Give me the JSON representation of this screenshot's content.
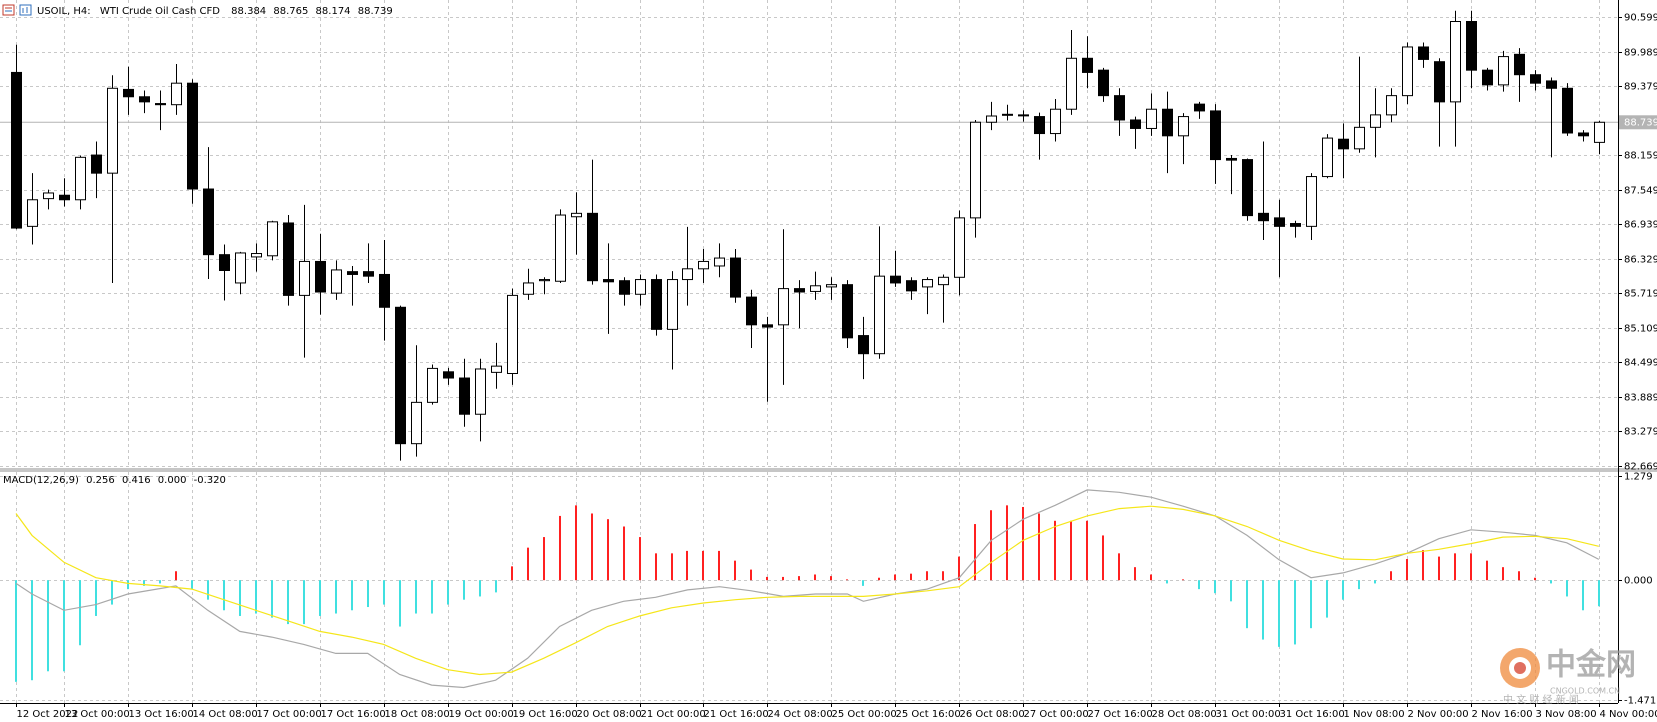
{
  "chart_data": [
    {
      "type": "candlestick",
      "title": "USOIL, H4:",
      "subtitle": "WTI Crude Oil Cash CFD",
      "readings": [
        88.384,
        88.765,
        88.174,
        88.739
      ],
      "last_price": 88.739,
      "up_color": "#ffffff",
      "down_color": "#000000",
      "outline": "#000000",
      "price_line_color": "#b4b4b4",
      "grid": true,
      "ylim": [
        82.63,
        90.9
      ],
      "yticks": [
        90.599,
        89.989,
        89.379,
        88.159,
        87.549,
        86.939,
        86.329,
        85.719,
        85.109,
        84.499,
        83.889,
        83.279,
        82.669
      ],
      "xlim": [
        -1,
        100.2
      ],
      "xticks": [
        {
          "value": 0,
          "label": "12 Oct 2022"
        },
        {
          "value": 3,
          "label": "13 Oct 00:00"
        },
        {
          "value": 7,
          "label": "13 Oct 16:00"
        },
        {
          "value": 11,
          "label": "14 Oct 08:00"
        },
        {
          "value": 15,
          "label": "17 Oct 00:00"
        },
        {
          "value": 19,
          "label": "17 Oct 16:00"
        },
        {
          "value": 23,
          "label": "18 Oct 08:00"
        },
        {
          "value": 27,
          "label": "19 Oct 00:00"
        },
        {
          "value": 31,
          "label": "19 Oct 16:00"
        },
        {
          "value": 35,
          "label": "20 Oct 08:00"
        },
        {
          "value": 39,
          "label": "21 Oct 00:00"
        },
        {
          "value": 43,
          "label": "21 Oct 16:00"
        },
        {
          "value": 47,
          "label": "24 Oct 08:00"
        },
        {
          "value": 51,
          "label": "25 Oct 00:00"
        },
        {
          "value": 55,
          "label": "25 Oct 16:00"
        },
        {
          "value": 59,
          "label": "26 Oct 08:00"
        },
        {
          "value": 63,
          "label": "27 Oct 00:00"
        },
        {
          "value": 67,
          "label": "27 Oct 16:00"
        },
        {
          "value": 71,
          "label": "28 Oct 08:00"
        },
        {
          "value": 75,
          "label": "31 Oct 00:00"
        },
        {
          "value": 79,
          "label": "31 Oct 16:00"
        },
        {
          "value": 83,
          "label": "1 Nov 08:00"
        },
        {
          "value": 87,
          "label": "2 Nov 00:00"
        },
        {
          "value": 91,
          "label": "2 Nov 16:00"
        },
        {
          "value": 95,
          "label": "3 Nov 08:00"
        },
        {
          "value": 99,
          "label": "4 Nov 00:00"
        }
      ],
      "open": [
        89.62,
        86.9,
        87.39,
        87.45,
        87.37,
        88.16,
        87.84,
        89.32,
        89.19,
        89.07,
        89.05,
        89.43,
        87.56,
        86.4,
        85.9,
        86.36,
        86.38,
        86.96,
        85.68,
        86.28,
        85.72,
        86.1,
        86.1,
        86.05,
        85.47,
        83.06,
        83.79,
        84.33,
        84.22,
        83.58,
        84.32,
        84.3,
        85.7,
        85.94,
        85.93,
        87.07,
        87.13,
        85.96,
        85.94,
        85.7,
        85.96,
        85.08,
        85.96,
        86.15,
        86.2,
        86.34,
        85.65,
        85.16,
        85.16,
        85.8,
        85.75,
        85.83,
        85.87,
        84.97,
        84.65,
        86.02,
        85.94,
        85.83,
        85.87,
        86.0,
        87.05,
        88.74,
        88.87,
        88.87,
        88.84,
        88.54,
        88.97,
        89.87,
        89.66,
        89.21,
        88.78,
        88.63,
        88.97,
        88.5,
        89.06,
        88.94,
        88.1,
        88.08,
        87.13,
        87.05,
        86.95,
        86.9,
        87.78,
        88.44,
        88.27,
        88.65,
        88.87,
        89.21,
        90.07,
        89.81,
        89.1,
        90.52,
        89.66,
        89.4,
        89.94,
        89.58,
        89.47,
        89.34,
        88.55,
        88.384
      ],
      "high": [
        90.11,
        87.84,
        87.55,
        87.75,
        88.15,
        88.4,
        89.57,
        89.72,
        89.3,
        89.3,
        89.77,
        89.5,
        88.3,
        86.58,
        86.45,
        86.6,
        87.0,
        87.1,
        87.28,
        86.77,
        86.3,
        86.2,
        86.6,
        86.66,
        85.5,
        84.8,
        84.46,
        84.4,
        84.56,
        84.56,
        84.84,
        85.8,
        86.15,
        86.0,
        87.2,
        87.5,
        88.08,
        86.6,
        86.0,
        86.05,
        86.05,
        86.11,
        86.89,
        86.5,
        86.6,
        86.5,
        85.78,
        85.3,
        86.85,
        85.95,
        86.1,
        86.0,
        85.95,
        85.3,
        86.9,
        86.47,
        86.0,
        86.0,
        86.05,
        87.18,
        88.78,
        89.1,
        89.05,
        88.95,
        88.91,
        89.15,
        90.37,
        90.26,
        89.7,
        89.34,
        88.84,
        89.25,
        89.28,
        88.9,
        89.1,
        89.06,
        88.16,
        88.1,
        88.4,
        87.37,
        87.0,
        87.84,
        88.53,
        88.72,
        89.9,
        89.34,
        89.34,
        90.15,
        90.15,
        89.87,
        90.71,
        90.71,
        89.7,
        90.0,
        90.05,
        89.66,
        89.53,
        89.43,
        88.6,
        88.765
      ],
      "low": [
        86.85,
        86.58,
        87.2,
        87.25,
        87.2,
        87.4,
        85.9,
        88.87,
        88.9,
        88.6,
        88.87,
        87.3,
        85.97,
        85.59,
        85.7,
        86.1,
        86.3,
        85.5,
        84.58,
        85.34,
        85.6,
        85.5,
        85.9,
        84.88,
        82.76,
        82.83,
        83.75,
        84.1,
        83.36,
        83.1,
        84.03,
        84.1,
        85.6,
        85.7,
        85.9,
        86.4,
        85.87,
        85.0,
        85.5,
        85.5,
        84.97,
        84.37,
        85.5,
        85.9,
        86.0,
        85.55,
        84.75,
        83.8,
        84.1,
        85.1,
        85.6,
        85.6,
        84.75,
        84.2,
        84.56,
        85.83,
        85.6,
        85.35,
        85.2,
        85.68,
        86.7,
        88.6,
        88.77,
        88.75,
        88.08,
        88.4,
        88.87,
        89.34,
        89.1,
        88.5,
        88.27,
        88.5,
        87.84,
        88.0,
        88.8,
        87.65,
        87.47,
        87.0,
        86.66,
        86.0,
        86.7,
        86.66,
        87.75,
        87.75,
        88.2,
        88.12,
        88.74,
        89.06,
        89.7,
        88.31,
        88.31,
        89.34,
        89.3,
        89.28,
        89.1,
        89.3,
        88.12,
        88.5,
        88.4,
        88.174
      ],
      "close": [
        86.87,
        87.37,
        87.49,
        87.37,
        88.12,
        87.84,
        89.34,
        89.19,
        89.1,
        89.05,
        89.43,
        87.56,
        86.4,
        86.12,
        86.43,
        86.42,
        86.98,
        85.68,
        86.28,
        85.74,
        86.13,
        86.05,
        86.02,
        85.47,
        83.06,
        83.79,
        84.39,
        84.22,
        83.58,
        84.38,
        84.43,
        85.68,
        85.9,
        85.96,
        87.1,
        87.13,
        85.94,
        85.92,
        85.7,
        85.96,
        85.08,
        85.96,
        86.15,
        86.28,
        86.34,
        85.65,
        85.16,
        85.12,
        85.8,
        85.74,
        85.85,
        85.87,
        84.93,
        84.65,
        86.02,
        85.9,
        85.76,
        85.96,
        86.0,
        87.05,
        88.74,
        88.85,
        88.88,
        88.86,
        88.54,
        88.97,
        89.87,
        89.62,
        89.21,
        88.78,
        88.63,
        88.97,
        88.5,
        88.84,
        88.94,
        88.08,
        88.07,
        87.09,
        87.0,
        86.9,
        86.9,
        87.78,
        88.46,
        88.27,
        88.65,
        88.87,
        89.21,
        90.07,
        89.85,
        89.1,
        90.52,
        89.66,
        89.4,
        89.9,
        89.58,
        89.43,
        89.34,
        88.55,
        88.5,
        88.739
      ]
    },
    {
      "type": "macd",
      "title": "MACD(12,26,9)",
      "readings": [
        0.256,
        0.416,
        {
          "value": 0,
          "label": "0.000"
        },
        {
          "value": -0.32,
          "label": "-0.320"
        }
      ],
      "grid": true,
      "ylim": [
        -1.51,
        1.33
      ],
      "yticks": [
        1.279,
        {
          "value": 0,
          "label": "0.000"
        },
        -1.471
      ],
      "histogram": {
        "up_color": "#ff2020",
        "down_color": "#40e0e0",
        "values": [
          -1.25,
          -1.23,
          -1.12,
          -1.12,
          -0.8,
          -0.44,
          -0.3,
          -0.11,
          -0.07,
          -0.04,
          0.11,
          -0.11,
          -0.24,
          -0.37,
          -0.44,
          -0.41,
          -0.46,
          -0.54,
          -0.54,
          -0.44,
          -0.41,
          -0.37,
          -0.33,
          -0.3,
          -0.57,
          -0.41,
          -0.41,
          -0.3,
          -0.24,
          -0.2,
          -0.15,
          0.17,
          0.4,
          0.53,
          0.79,
          0.92,
          0.82,
          0.75,
          0.66,
          0.53,
          0.33,
          0.33,
          0.36,
          0.36,
          0.36,
          0.24,
          0.13,
          0.04,
          0.04,
          0.05,
          0.07,
          0.05,
          0.01,
          -0.07,
          0.03,
          0.07,
          0.08,
          0.11,
          0.11,
          0.29,
          0.69,
          0.86,
          0.92,
          0.9,
          0.82,
          0.73,
          0.73,
          0.73,
          0.55,
          0.33,
          0.16,
          0.07,
          -0.04,
          0.01,
          -0.11,
          -0.16,
          -0.26,
          -0.59,
          -0.73,
          -0.82,
          -0.79,
          -0.59,
          -0.46,
          -0.24,
          -0.11,
          -0.04,
          0.11,
          0.26,
          0.37,
          0.29,
          0.33,
          0.33,
          0.24,
          0.16,
          0.11,
          0.03,
          -0.04,
          -0.2,
          -0.37,
          -0.32
        ]
      },
      "lines": [
        {
          "color": "#a8a8a8",
          "x": [
            0,
            1,
            3,
            5,
            7,
            10,
            12,
            14,
            16,
            18,
            20,
            22,
            24,
            26,
            28,
            30,
            32,
            34,
            36,
            38,
            40,
            42,
            44,
            46,
            48,
            50,
            52,
            53,
            55,
            57,
            59,
            61,
            63,
            65,
            67,
            69,
            71,
            73,
            75,
            77,
            79,
            81,
            83,
            85,
            87,
            89,
            91,
            93,
            95,
            97,
            99
          ],
          "values": [
            -0.04,
            -0.17,
            -0.37,
            -0.3,
            -0.17,
            -0.07,
            -0.37,
            -0.63,
            -0.7,
            -0.79,
            -0.9,
            -0.9,
            -1.16,
            -1.29,
            -1.32,
            -1.23,
            -0.96,
            -0.57,
            -0.37,
            -0.26,
            -0.21,
            -0.12,
            -0.08,
            -0.13,
            -0.2,
            -0.17,
            -0.17,
            -0.26,
            -0.17,
            -0.11,
            0.03,
            0.49,
            0.75,
            0.92,
            1.11,
            1.08,
            1.02,
            0.91,
            0.79,
            0.55,
            0.25,
            0.03,
            0.09,
            0.2,
            0.33,
            0.51,
            0.62,
            0.59,
            0.55,
            0.46,
            0.256
          ]
        },
        {
          "color": "#f5e61a",
          "x": [
            0,
            1,
            3,
            5,
            7,
            9,
            11,
            13,
            15,
            17,
            19,
            21,
            23,
            25,
            27,
            29,
            31,
            33,
            35,
            37,
            39,
            41,
            43,
            45,
            47,
            49,
            51,
            53,
            55,
            57,
            59,
            61,
            63,
            65,
            67,
            69,
            71,
            73,
            75,
            77,
            79,
            81,
            83,
            85,
            87,
            89,
            91,
            93,
            95,
            97,
            99
          ],
          "values": [
            0.82,
            0.55,
            0.22,
            0.03,
            -0.04,
            -0.07,
            -0.11,
            -0.24,
            -0.37,
            -0.5,
            -0.63,
            -0.7,
            -0.79,
            -0.96,
            -1.1,
            -1.16,
            -1.13,
            -0.96,
            -0.77,
            -0.57,
            -0.44,
            -0.34,
            -0.28,
            -0.24,
            -0.21,
            -0.2,
            -0.2,
            -0.2,
            -0.17,
            -0.13,
            -0.08,
            0.22,
            0.49,
            0.66,
            0.79,
            0.88,
            0.91,
            0.87,
            0.79,
            0.66,
            0.49,
            0.36,
            0.26,
            0.25,
            0.33,
            0.38,
            0.45,
            0.53,
            0.54,
            0.51,
            0.416
          ]
        }
      ]
    }
  ],
  "watermark": {
    "brand": "中金网",
    "site": "CNGOLD.COM.CN",
    "tagline": "中 文 财 经 新 闻"
  }
}
